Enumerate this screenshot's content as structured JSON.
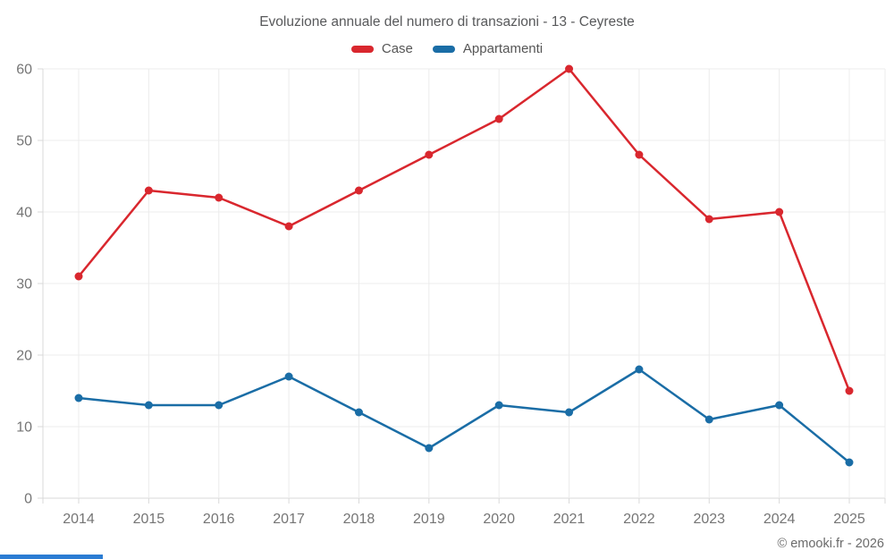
{
  "title": "Evoluzione annuale del numero di transazioni - 13 - Ceyreste",
  "footer": {
    "credit": "© emooki.fr - 2026"
  },
  "colors": {
    "case": "#d9272e",
    "appartamenti": "#1a6da6",
    "grid": "#ececec",
    "axis": "#d9d9d9",
    "tick_label": "#757575",
    "title_text": "#58595b",
    "legend_text": "#565656",
    "footer_text": "#6b6b6b",
    "progress_bar": "#2b7cd3",
    "background": "#ffffff"
  },
  "chart_data": {
    "type": "line",
    "title": "Evoluzione annuale del numero di transazioni - 13 - Ceyreste",
    "x": [
      2014,
      2015,
      2016,
      2017,
      2018,
      2019,
      2020,
      2021,
      2022,
      2023,
      2024,
      2025
    ],
    "series": [
      {
        "name": "Case",
        "color_key": "case",
        "values": [
          31,
          43,
          42,
          38,
          43,
          48,
          53,
          60,
          48,
          39,
          40,
          15
        ]
      },
      {
        "name": "Appartamenti",
        "color_key": "appartamenti",
        "values": [
          14,
          13,
          13,
          17,
          12,
          7,
          13,
          12,
          18,
          11,
          13,
          5
        ]
      }
    ],
    "xlabel": "",
    "ylabel": "",
    "ylim": [
      0,
      60
    ],
    "ytick_step": 10,
    "grid": true,
    "legend_position": "top"
  }
}
